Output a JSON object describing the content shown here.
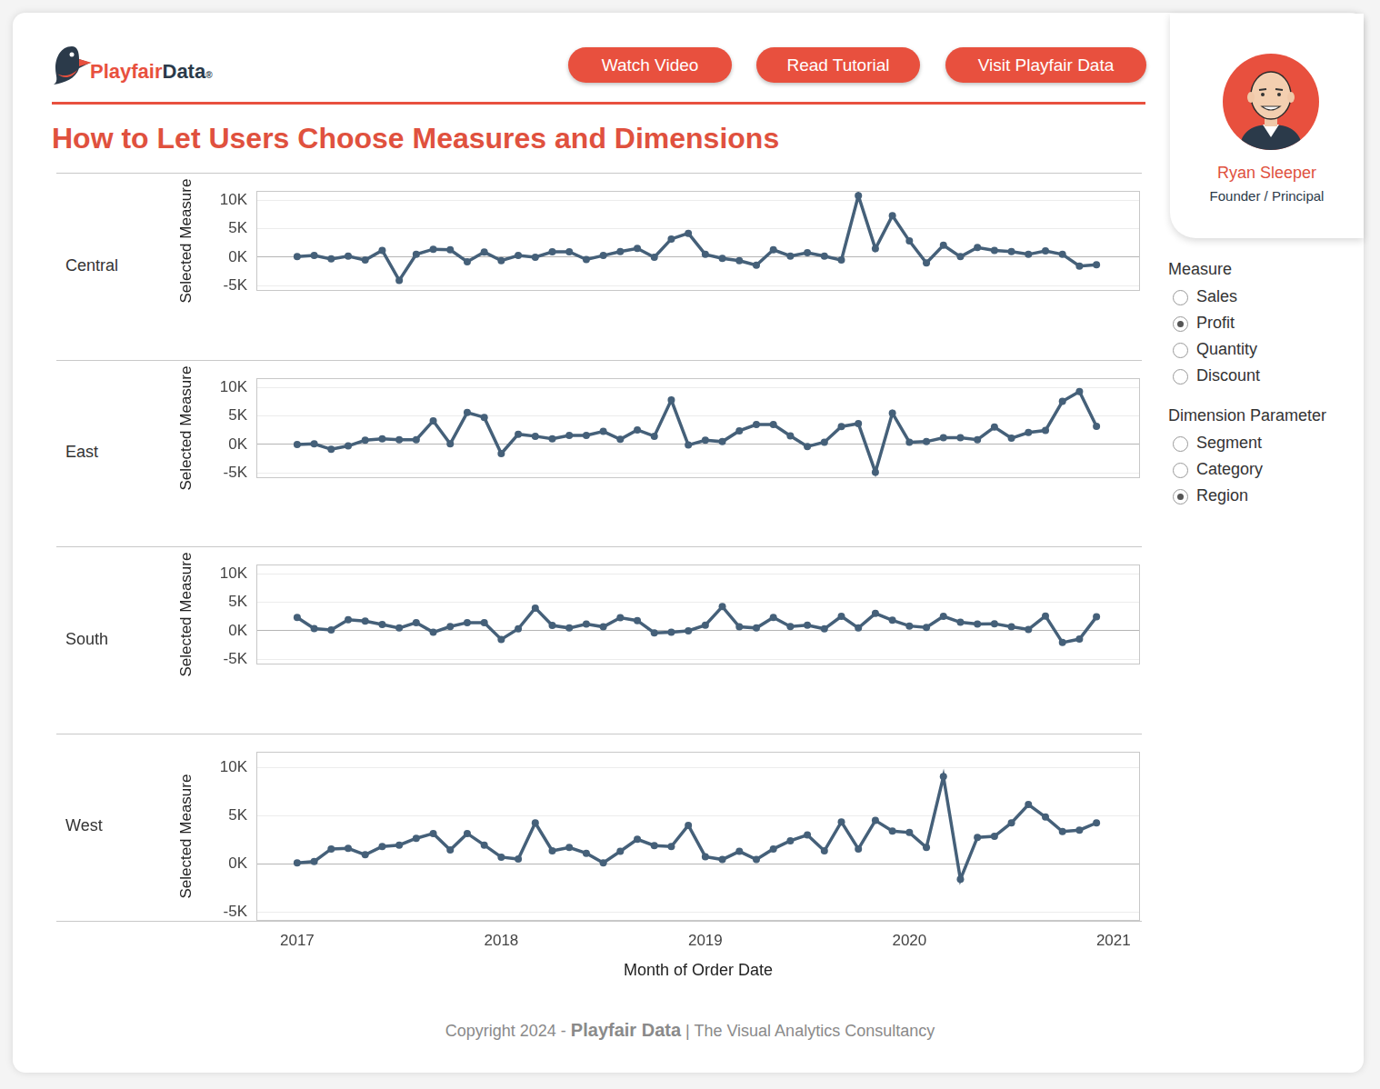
{
  "header": {
    "logo": [
      "Playfair",
      "Data",
      "®"
    ],
    "buttons": [
      "Watch Video",
      "Read Tutorial",
      "Visit Playfair Data"
    ],
    "title": "How to Let Users Choose Measures and Dimensions"
  },
  "profile": {
    "name": "Ryan Sleeper",
    "role": "Founder / Principal"
  },
  "controls": [
    {
      "label": "Measure",
      "options": [
        "Sales",
        "Profit",
        "Quantity",
        "Discount"
      ],
      "selected": "Profit"
    },
    {
      "label": "Dimension Parameter",
      "options": [
        "Segment",
        "Category",
        "Region"
      ],
      "selected": "Region"
    }
  ],
  "footer": [
    "Copyright 2024 - ",
    "Playfair Data",
    " | The Visual Analytics Consultancy"
  ],
  "chart_data": [
    {
      "type": "line",
      "title": "Central",
      "y_label": "Selected Measure",
      "tick_labels": "y",
      "grid": true,
      "marker": "circle",
      "color": "#456079",
      "x": [
        2017,
        2017.0833,
        2017.1667,
        2017.25,
        2017.3333,
        2017.4167,
        2017.5,
        2017.5833,
        2017.6667,
        2017.75,
        2017.8333,
        2017.9167,
        2018,
        2018.0833,
        2018.1667,
        2018.25,
        2018.3333,
        2018.4167,
        2018.5,
        2018.5833,
        2018.6667,
        2018.75,
        2018.8333,
        2018.9167,
        2019,
        2019.0833,
        2019.1667,
        2019.25,
        2019.3333,
        2019.4167,
        2019.5,
        2019.5833,
        2019.6667,
        2019.75,
        2019.8333,
        2019.9167,
        2020,
        2020.0833,
        2020.1667,
        2020.25,
        2020.3333,
        2020.4167,
        2020.5,
        2020.5833,
        2020.6667,
        2020.75,
        2020.8333,
        2020.9167
      ],
      "values": [
        100,
        300,
        -300,
        200,
        -500,
        1200,
        -4050,
        500,
        1400,
        1300,
        -800,
        900,
        -600,
        300,
        0,
        950,
        950,
        -400,
        300,
        1000,
        1550,
        0,
        3200,
        4200,
        500,
        -200,
        -600,
        -1400,
        1300,
        200,
        800,
        200,
        -500,
        10800,
        1500,
        7300,
        2850,
        -1000,
        2100,
        100,
        1700,
        1200,
        1000,
        500,
        1100,
        500,
        -1550,
        -1300
      ],
      "xlim": [
        2016.8,
        2021.13
      ],
      "ylim": [
        -5900,
        11600
      ],
      "yticks": [
        {
          "value": -5000,
          "label": "-5K"
        },
        {
          "value": 0,
          "label": "0K"
        },
        {
          "value": 5000,
          "label": "5K"
        },
        {
          "value": 10000,
          "label": "10K"
        }
      ]
    },
    {
      "type": "line",
      "title": "East",
      "y_label": "Selected Measure",
      "tick_labels": "y",
      "grid": true,
      "marker": "circle",
      "color": "#456079",
      "x": [
        2017,
        2017.0833,
        2017.1667,
        2017.25,
        2017.3333,
        2017.4167,
        2017.5,
        2017.5833,
        2017.6667,
        2017.75,
        2017.8333,
        2017.9167,
        2018,
        2018.0833,
        2018.1667,
        2018.25,
        2018.3333,
        2018.4167,
        2018.5,
        2018.5833,
        2018.6667,
        2018.75,
        2018.8333,
        2018.9167,
        2019,
        2019.0833,
        2019.1667,
        2019.25,
        2019.3333,
        2019.4167,
        2019.5,
        2019.5833,
        2019.6667,
        2019.75,
        2019.8333,
        2019.9167,
        2020,
        2020.0833,
        2020.1667,
        2020.25,
        2020.3333,
        2020.4167,
        2020.5,
        2020.5833,
        2020.6667,
        2020.75,
        2020.8333,
        2020.9167
      ],
      "values": [
        0,
        100,
        -850,
        -250,
        750,
        1000,
        850,
        850,
        4150,
        100,
        5600,
        4750,
        -1600,
        1800,
        1450,
        1000,
        1600,
        1600,
        2300,
        900,
        2550,
        1450,
        7800,
        -100,
        750,
        500,
        2400,
        3500,
        3500,
        1500,
        -350,
        400,
        3150,
        3650,
        -4850,
        5500,
        400,
        500,
        1200,
        1200,
        850,
        3050,
        1100,
        2100,
        2450,
        7550,
        9300,
        3200
      ],
      "xlim": [
        2016.8,
        2021.13
      ],
      "ylim": [
        -5900,
        11600
      ],
      "yticks": [
        {
          "value": -5000,
          "label": "-5K"
        },
        {
          "value": 0,
          "label": "0K"
        },
        {
          "value": 5000,
          "label": "5K"
        },
        {
          "value": 10000,
          "label": "10K"
        }
      ]
    },
    {
      "type": "line",
      "title": "South",
      "y_label": "Selected Measure",
      "tick_labels": "y",
      "grid": true,
      "marker": "circle",
      "color": "#456079",
      "x": [
        2017,
        2017.0833,
        2017.1667,
        2017.25,
        2017.3333,
        2017.4167,
        2017.5,
        2017.5833,
        2017.6667,
        2017.75,
        2017.8333,
        2017.9167,
        2018,
        2018.0833,
        2018.1667,
        2018.25,
        2018.3333,
        2018.4167,
        2018.5,
        2018.5833,
        2018.6667,
        2018.75,
        2018.8333,
        2018.9167,
        2019,
        2019.0833,
        2019.1667,
        2019.25,
        2019.3333,
        2019.4167,
        2019.5,
        2019.5833,
        2019.6667,
        2019.75,
        2019.8333,
        2019.9167,
        2020,
        2020.0833,
        2020.1667,
        2020.25,
        2020.3333,
        2020.4167,
        2020.5,
        2020.5833,
        2020.6667,
        2020.75,
        2020.8333,
        2020.9167
      ],
      "values": [
        2350,
        400,
        150,
        1950,
        1700,
        1100,
        500,
        1450,
        -250,
        750,
        1450,
        1450,
        -1500,
        350,
        4000,
        950,
        500,
        1200,
        700,
        2300,
        1800,
        -350,
        -250,
        0,
        1000,
        4250,
        700,
        500,
        2350,
        750,
        1000,
        350,
        2550,
        500,
        3050,
        1850,
        850,
        600,
        2550,
        1500,
        1200,
        1250,
        700,
        250,
        2600,
        -2050,
        -1450,
        2450
      ],
      "xlim": [
        2016.8,
        2021.13
      ],
      "ylim": [
        -5900,
        11600
      ],
      "yticks": [
        {
          "value": -5000,
          "label": "-5K"
        },
        {
          "value": 0,
          "label": "0K"
        },
        {
          "value": 5000,
          "label": "5K"
        },
        {
          "value": 10000,
          "label": "10K"
        }
      ]
    },
    {
      "type": "line",
      "title": "West",
      "y_label": "Selected Measure",
      "x_label": "Month of Order Date",
      "grid": true,
      "marker": "circle",
      "color": "#456079",
      "x": [
        2017,
        2017.0833,
        2017.1667,
        2017.25,
        2017.3333,
        2017.4167,
        2017.5,
        2017.5833,
        2017.6667,
        2017.75,
        2017.8333,
        2017.9167,
        2018,
        2018.0833,
        2018.1667,
        2018.25,
        2018.3333,
        2018.4167,
        2018.5,
        2018.5833,
        2018.6667,
        2018.75,
        2018.8333,
        2018.9167,
        2019,
        2019.0833,
        2019.1667,
        2019.25,
        2019.3333,
        2019.4167,
        2019.5,
        2019.5833,
        2019.6667,
        2019.75,
        2019.8333,
        2019.9167,
        2020,
        2020.0833,
        2020.1667,
        2020.25,
        2020.3333,
        2020.4167,
        2020.5,
        2020.5833,
        2020.6667,
        2020.75,
        2020.8333,
        2020.9167
      ],
      "values": [
        100,
        250,
        1550,
        1600,
        950,
        1800,
        1950,
        2650,
        3150,
        1450,
        3150,
        1950,
        700,
        500,
        4250,
        1350,
        1700,
        1100,
        100,
        1300,
        2550,
        1900,
        1800,
        4000,
        750,
        450,
        1300,
        450,
        1550,
        2400,
        3000,
        1350,
        4350,
        1550,
        4500,
        3400,
        3250,
        1700,
        9050,
        -1600,
        2750,
        2850,
        4250,
        6150,
        4850,
        3350,
        3500,
        4250
      ],
      "xlim": [
        2016.8,
        2021.13
      ],
      "xticks": [
        2017,
        2018,
        2019,
        2020,
        2021
      ],
      "ylim": [
        -5900,
        11600
      ],
      "yticks": [
        {
          "value": -5000,
          "label": "-5K"
        },
        {
          "value": 0,
          "label": "0K"
        },
        {
          "value": 5000,
          "label": "5K"
        },
        {
          "value": 10000,
          "label": "10K"
        }
      ]
    }
  ]
}
